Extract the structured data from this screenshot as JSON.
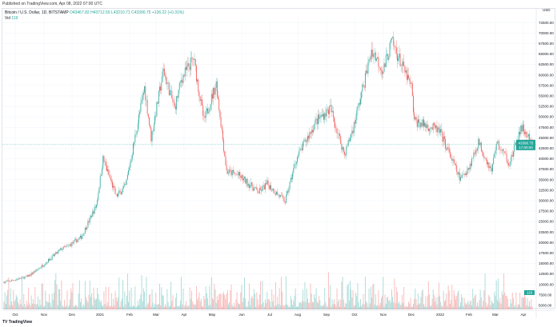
{
  "published": "Published on TradingView.com, Apr 08, 2022 07:00 UTC",
  "legend": {
    "symbol": "Bitcoin / U.S. Dollar, 1D, BITSTAMP",
    "open": "O43467.82",
    "high": "H43712.50",
    "low": "L43210.71",
    "close": "C43390.75",
    "change": "+136.22 (+0.31%)",
    "vol_label": "Vol",
    "vol_value": "119"
  },
  "brand": "TradingView",
  "chart_data": {
    "type": "candlestick",
    "currency": "USD",
    "colors": {
      "up": "#26a69a",
      "down": "#ef5350"
    },
    "ylim": [
      5000,
      72500
    ],
    "yticks": [
      5000,
      7500,
      10000,
      12500,
      15000,
      17500,
      20000,
      22500,
      25000,
      27500,
      30000,
      32500,
      35000,
      37500,
      40000,
      42500,
      45000,
      47500,
      50000,
      52500,
      55000,
      57500,
      60000,
      62500,
      65000,
      67500,
      70000,
      72500
    ],
    "xticks": [
      "Oct",
      "Nov",
      "Dec",
      "2021",
      "Feb",
      "Mar",
      "Apr",
      "May",
      "Jun",
      "Jul",
      "Aug",
      "Sep",
      "Oct",
      "Nov",
      "Dec",
      "2022",
      "Feb",
      "Mar",
      "Apr"
    ],
    "last_price": "43390.75",
    "last_time": "17:00:00",
    "last_vol": "119",
    "close_path": [
      [
        "2020-09-25",
        10600
      ],
      [
        "2020-10-01",
        10800
      ],
      [
        "2020-10-20",
        11900
      ],
      [
        "2020-11-01",
        13800
      ],
      [
        "2020-11-25",
        18500
      ],
      [
        "2020-12-01",
        19000
      ],
      [
        "2020-12-16",
        21300
      ],
      [
        "2021-01-01",
        29000
      ],
      [
        "2021-01-08",
        40000
      ],
      [
        "2021-01-22",
        31000
      ],
      [
        "2021-02-01",
        33500
      ],
      [
        "2021-02-21",
        57000
      ],
      [
        "2021-02-28",
        45000
      ],
      [
        "2021-03-13",
        61000
      ],
      [
        "2021-03-25",
        52000
      ],
      [
        "2021-04-01",
        59000
      ],
      [
        "2021-04-14",
        64000
      ],
      [
        "2021-04-25",
        49000
      ],
      [
        "2021-05-08",
        58000
      ],
      [
        "2021-05-19",
        37000
      ],
      [
        "2021-06-01",
        36000
      ],
      [
        "2021-06-22",
        32000
      ],
      [
        "2021-07-01",
        34000
      ],
      [
        "2021-07-20",
        29800
      ],
      [
        "2021-08-01",
        40000
      ],
      [
        "2021-08-22",
        49000
      ],
      [
        "2021-09-06",
        52000
      ],
      [
        "2021-09-21",
        41000
      ],
      [
        "2021-10-01",
        48000
      ],
      [
        "2021-10-20",
        66000
      ],
      [
        "2021-11-01",
        61000
      ],
      [
        "2021-11-10",
        68000
      ],
      [
        "2021-12-01",
        57000
      ],
      [
        "2021-12-04",
        49000
      ],
      [
        "2021-12-28",
        47000
      ],
      [
        "2022-01-01",
        46000
      ],
      [
        "2022-01-22",
        35000
      ],
      [
        "2022-02-01",
        38500
      ],
      [
        "2022-02-10",
        44000
      ],
      [
        "2022-02-24",
        37000
      ],
      [
        "2022-03-01",
        44000
      ],
      [
        "2022-03-15",
        39000
      ],
      [
        "2022-03-28",
        47500
      ],
      [
        "2022-04-08",
        43390.75
      ]
    ]
  }
}
